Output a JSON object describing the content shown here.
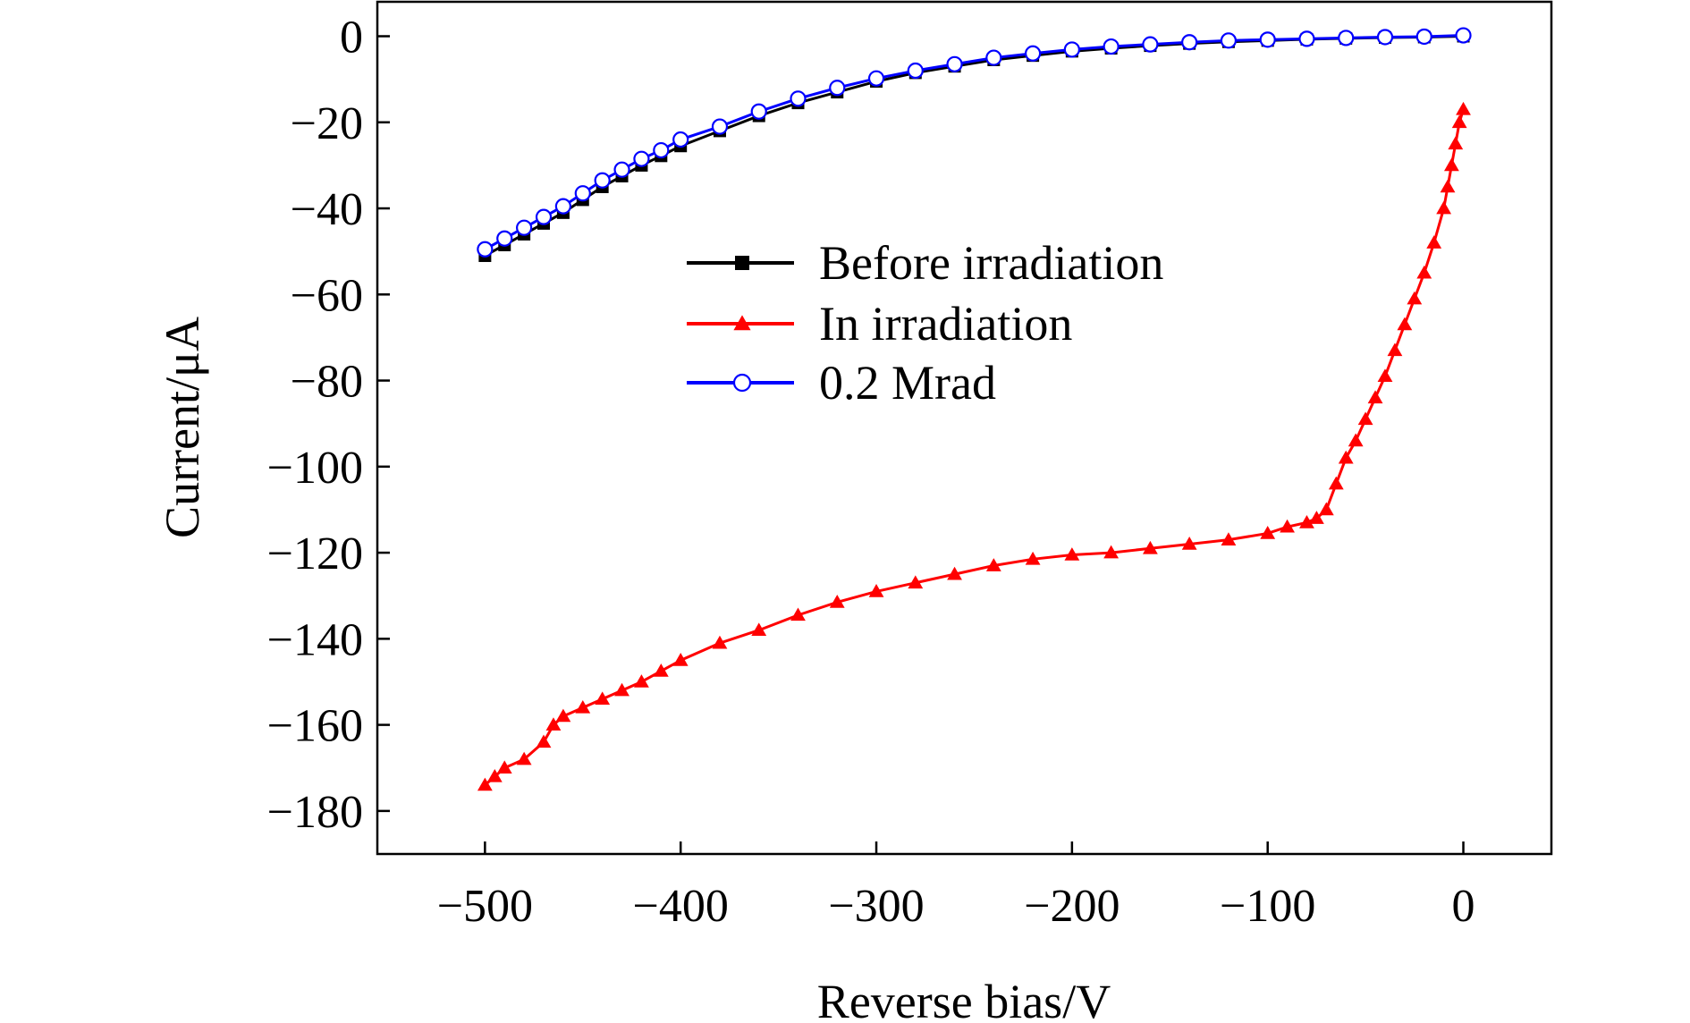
{
  "chart_data": {
    "type": "scatter",
    "title": "",
    "xlabel": "Reverse bias/V",
    "ylabel": "Current/μA",
    "xlim": [
      -555,
      45
    ],
    "ylim": [
      -190,
      8
    ],
    "xticks": [
      -500,
      -400,
      -300,
      -200,
      -100,
      0
    ],
    "yticks": [
      0,
      -20,
      -40,
      -60,
      -80,
      -100,
      -120,
      -140,
      -160,
      -180
    ],
    "xtick_labels": [
      "−500",
      "−400",
      "−300",
      "−200",
      "−100",
      "0"
    ],
    "ytick_labels": [
      "0",
      "−20",
      "−40",
      "−60",
      "−80",
      "−100",
      "−120",
      "−140",
      "−160",
      "−180"
    ],
    "grid": false,
    "legend_position": "center",
    "series": [
      {
        "name": "Before irradiation",
        "color": "#000000",
        "marker": "square",
        "x": [
          -500,
          -490,
          -480,
          -470,
          -460,
          -450,
          -440,
          -430,
          -420,
          -410,
          -400,
          -380,
          -360,
          -340,
          -320,
          -300,
          -280,
          -260,
          -240,
          -220,
          -200,
          -180,
          -160,
          -140,
          -120,
          -100,
          -80,
          -60,
          -40,
          -20,
          0
        ],
        "y": [
          -51,
          -48.5,
          -46,
          -43.5,
          -41,
          -38,
          -35,
          -32.5,
          -30,
          -27.8,
          -25.5,
          -22,
          -18.5,
          -15.5,
          -13,
          -10.5,
          -8.5,
          -7,
          -5.5,
          -4.5,
          -3.5,
          -2.8,
          -2.2,
          -1.7,
          -1.3,
          -1,
          -0.7,
          -0.5,
          -0.3,
          -0.2,
          0
        ]
      },
      {
        "name": "In irradiation",
        "color": "#ff0000",
        "marker": "triangle",
        "x": [
          -500,
          -495,
          -490,
          -480,
          -470,
          -465,
          -460,
          -450,
          -440,
          -430,
          -420,
          -410,
          -400,
          -380,
          -360,
          -340,
          -320,
          -300,
          -280,
          -260,
          -240,
          -220,
          -200,
          -180,
          -160,
          -140,
          -120,
          -100,
          -90,
          -80,
          -75,
          -70,
          -65,
          -60,
          -55,
          -50,
          -45,
          -40,
          -35,
          -30,
          -25,
          -20,
          -15,
          -10,
          -8,
          -6,
          -4,
          -2,
          0
        ],
        "y": [
          -174,
          -172,
          -170,
          -168,
          -164,
          -160,
          -158,
          -156,
          -154,
          -152,
          -150,
          -147.5,
          -145,
          -141,
          -138,
          -134.5,
          -131.5,
          -129,
          -127,
          -125,
          -123,
          -121.5,
          -120.5,
          -120,
          -119,
          -118,
          -117,
          -115.5,
          -114,
          -113,
          -112,
          -110,
          -104,
          -98,
          -94,
          -89,
          -84,
          -79,
          -73,
          -67,
          -61,
          -55,
          -48,
          -40,
          -35,
          -30,
          -25,
          -20,
          -17
        ]
      },
      {
        "name": "0.2 Mrad",
        "color": "#0000ff",
        "marker": "circle-open",
        "x": [
          -500,
          -490,
          -480,
          -470,
          -460,
          -450,
          -440,
          -430,
          -420,
          -410,
          -400,
          -380,
          -360,
          -340,
          -320,
          -300,
          -280,
          -260,
          -240,
          -220,
          -200,
          -180,
          -160,
          -140,
          -120,
          -100,
          -80,
          -60,
          -40,
          -20,
          0
        ],
        "y": [
          -49.5,
          -47,
          -44.5,
          -42,
          -39.5,
          -36.5,
          -33.5,
          -31,
          -28.5,
          -26.5,
          -24,
          -21,
          -17.5,
          -14.5,
          -12,
          -9.8,
          -8,
          -6.5,
          -5,
          -4,
          -3.1,
          -2.4,
          -1.9,
          -1.4,
          -1,
          -0.8,
          -0.6,
          -0.4,
          -0.2,
          -0.1,
          0.2
        ]
      }
    ]
  }
}
